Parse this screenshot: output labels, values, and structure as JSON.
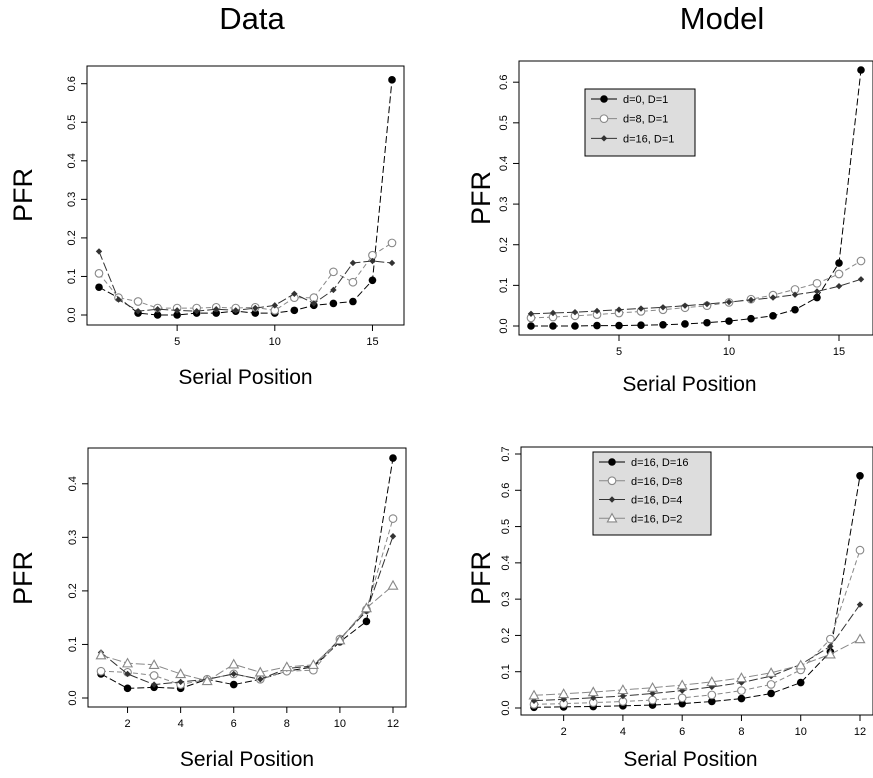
{
  "column_titles": [
    "Data",
    "Model"
  ],
  "chart_data": [
    {
      "type": "line",
      "title": "",
      "xlabel": "Serial Position",
      "ylabel": "PFR",
      "xlim": [
        1,
        16
      ],
      "ylim": [
        0,
        0.62
      ],
      "xticks": [
        5,
        10,
        15
      ],
      "yticks": [
        0.0,
        0.1,
        0.2,
        0.3,
        0.4,
        0.5,
        0.6
      ],
      "ytick_labels": [
        "0.0",
        "0.1",
        "0.2",
        "0.3",
        "0.4",
        "0.5",
        "0.6"
      ],
      "legend": false,
      "x": [
        1,
        2,
        3,
        4,
        5,
        6,
        7,
        8,
        9,
        10,
        11,
        12,
        13,
        14,
        15,
        16
      ],
      "series": [
        {
          "marker": "filled-circle",
          "color": "#000000",
          "values": [
            0.072,
            0.045,
            0.005,
            0.0,
            0.0,
            0.005,
            0.005,
            0.01,
            0.005,
            0.005,
            0.012,
            0.025,
            0.03,
            0.035,
            0.09,
            0.61
          ]
        },
        {
          "marker": "open-circle",
          "color": "#888888",
          "values": [
            0.108,
            0.045,
            0.035,
            0.018,
            0.018,
            0.018,
            0.02,
            0.018,
            0.02,
            0.012,
            0.045,
            0.045,
            0.112,
            0.085,
            0.155,
            0.187
          ]
        },
        {
          "marker": "small-diamond",
          "color": "#333333",
          "values": [
            0.165,
            0.04,
            0.01,
            0.015,
            0.012,
            0.01,
            0.015,
            0.012,
            0.018,
            0.025,
            0.055,
            0.03,
            0.065,
            0.135,
            0.14,
            0.135
          ]
        }
      ]
    },
    {
      "type": "line",
      "title": "",
      "xlabel": "Serial Position",
      "ylabel": "PFR",
      "xlim": [
        1,
        16
      ],
      "ylim": [
        0,
        0.63
      ],
      "xticks": [
        5,
        10,
        15
      ],
      "yticks": [
        0.0,
        0.1,
        0.2,
        0.3,
        0.4,
        0.5,
        0.6
      ],
      "ytick_labels": [
        "0.0",
        "0.1",
        "0.2",
        "0.3",
        "0.4",
        "0.5",
        "0.6"
      ],
      "legend": true,
      "legend_position": "top-left",
      "x": [
        1,
        2,
        3,
        4,
        5,
        6,
        7,
        8,
        9,
        10,
        11,
        12,
        13,
        14,
        15,
        16
      ],
      "series": [
        {
          "name": "d=0,  D=1",
          "marker": "filled-circle",
          "color": "#000000",
          "values": [
            0.0,
            0.0,
            0.0,
            0.001,
            0.001,
            0.002,
            0.003,
            0.005,
            0.008,
            0.012,
            0.018,
            0.025,
            0.04,
            0.07,
            0.155,
            0.63
          ]
        },
        {
          "name": "d=8,  D=1",
          "marker": "open-circle",
          "color": "#888888",
          "values": [
            0.02,
            0.022,
            0.025,
            0.028,
            0.032,
            0.036,
            0.04,
            0.045,
            0.05,
            0.058,
            0.066,
            0.076,
            0.09,
            0.105,
            0.128,
            0.16
          ]
        },
        {
          "name": "d=16, D=1",
          "marker": "small-diamond",
          "color": "#333333",
          "values": [
            0.03,
            0.032,
            0.034,
            0.037,
            0.04,
            0.043,
            0.046,
            0.05,
            0.054,
            0.059,
            0.064,
            0.07,
            0.077,
            0.085,
            0.098,
            0.115
          ]
        }
      ]
    },
    {
      "type": "line",
      "title": "",
      "xlabel": "Serial Position",
      "ylabel": "PFR",
      "xlim": [
        1,
        12
      ],
      "ylim": [
        0,
        0.45
      ],
      "xticks": [
        2,
        4,
        6,
        8,
        10,
        12
      ],
      "yticks": [
        0.0,
        0.1,
        0.2,
        0.3,
        0.4
      ],
      "ytick_labels": [
        "0.0",
        "0.1",
        "0.2",
        "0.3",
        "0.4"
      ],
      "legend": false,
      "x": [
        1,
        2,
        3,
        4,
        5,
        6,
        7,
        8,
        9,
        10,
        11,
        12
      ],
      "series": [
        {
          "marker": "filled-circle",
          "color": "#000000",
          "values": [
            0.045,
            0.018,
            0.02,
            0.018,
            0.035,
            0.025,
            0.035,
            0.05,
            0.058,
            0.105,
            0.143,
            0.448
          ]
        },
        {
          "marker": "open-circle",
          "color": "#888888",
          "values": [
            0.05,
            0.048,
            0.042,
            0.025,
            0.035,
            0.045,
            0.035,
            0.05,
            0.052,
            0.11,
            0.165,
            0.335
          ]
        },
        {
          "marker": "small-diamond",
          "color": "#333333",
          "values": [
            0.085,
            0.045,
            0.025,
            0.03,
            0.035,
            0.045,
            0.035,
            0.055,
            0.06,
            0.11,
            0.162,
            0.302
          ]
        },
        {
          "marker": "open-triangle",
          "color": "#888888",
          "values": [
            0.08,
            0.065,
            0.062,
            0.045,
            0.032,
            0.063,
            0.048,
            0.058,
            0.062,
            0.108,
            0.168,
            0.21
          ]
        }
      ]
    },
    {
      "type": "line",
      "title": "",
      "xlabel": "Serial Position",
      "ylabel": "PFR",
      "xlim": [
        1,
        12
      ],
      "ylim": [
        0,
        0.7
      ],
      "xticks": [
        2,
        4,
        6,
        8,
        10,
        12
      ],
      "yticks": [
        0.0,
        0.1,
        0.2,
        0.3,
        0.4,
        0.5,
        0.6,
        0.7
      ],
      "ytick_labels": [
        "0.0",
        "0.1",
        "0.2",
        "0.3",
        "0.4",
        "0.5",
        "0.6",
        "0.7"
      ],
      "legend": true,
      "legend_position": "top-left",
      "x": [
        1,
        2,
        3,
        4,
        5,
        6,
        7,
        8,
        9,
        10,
        11,
        12
      ],
      "series": [
        {
          "name": "d=16, D=16",
          "marker": "filled-circle",
          "color": "#000000",
          "values": [
            0.002,
            0.003,
            0.004,
            0.006,
            0.008,
            0.012,
            0.018,
            0.026,
            0.04,
            0.07,
            0.155,
            0.64
          ]
        },
        {
          "name": "d=16, D=8",
          "marker": "open-circle",
          "color": "#888888",
          "values": [
            0.01,
            0.012,
            0.015,
            0.018,
            0.022,
            0.028,
            0.036,
            0.048,
            0.065,
            0.105,
            0.19,
            0.435
          ]
        },
        {
          "name": "d=16, D=4",
          "marker": "small-diamond",
          "color": "#333333",
          "values": [
            0.02,
            0.024,
            0.028,
            0.033,
            0.04,
            0.048,
            0.058,
            0.07,
            0.088,
            0.12,
            0.17,
            0.285
          ]
        },
        {
          "name": "d=16, D=2",
          "marker": "open-triangle",
          "color": "#888888",
          "values": [
            0.035,
            0.039,
            0.044,
            0.05,
            0.056,
            0.063,
            0.072,
            0.083,
            0.097,
            0.118,
            0.148,
            0.19
          ]
        }
      ]
    }
  ]
}
